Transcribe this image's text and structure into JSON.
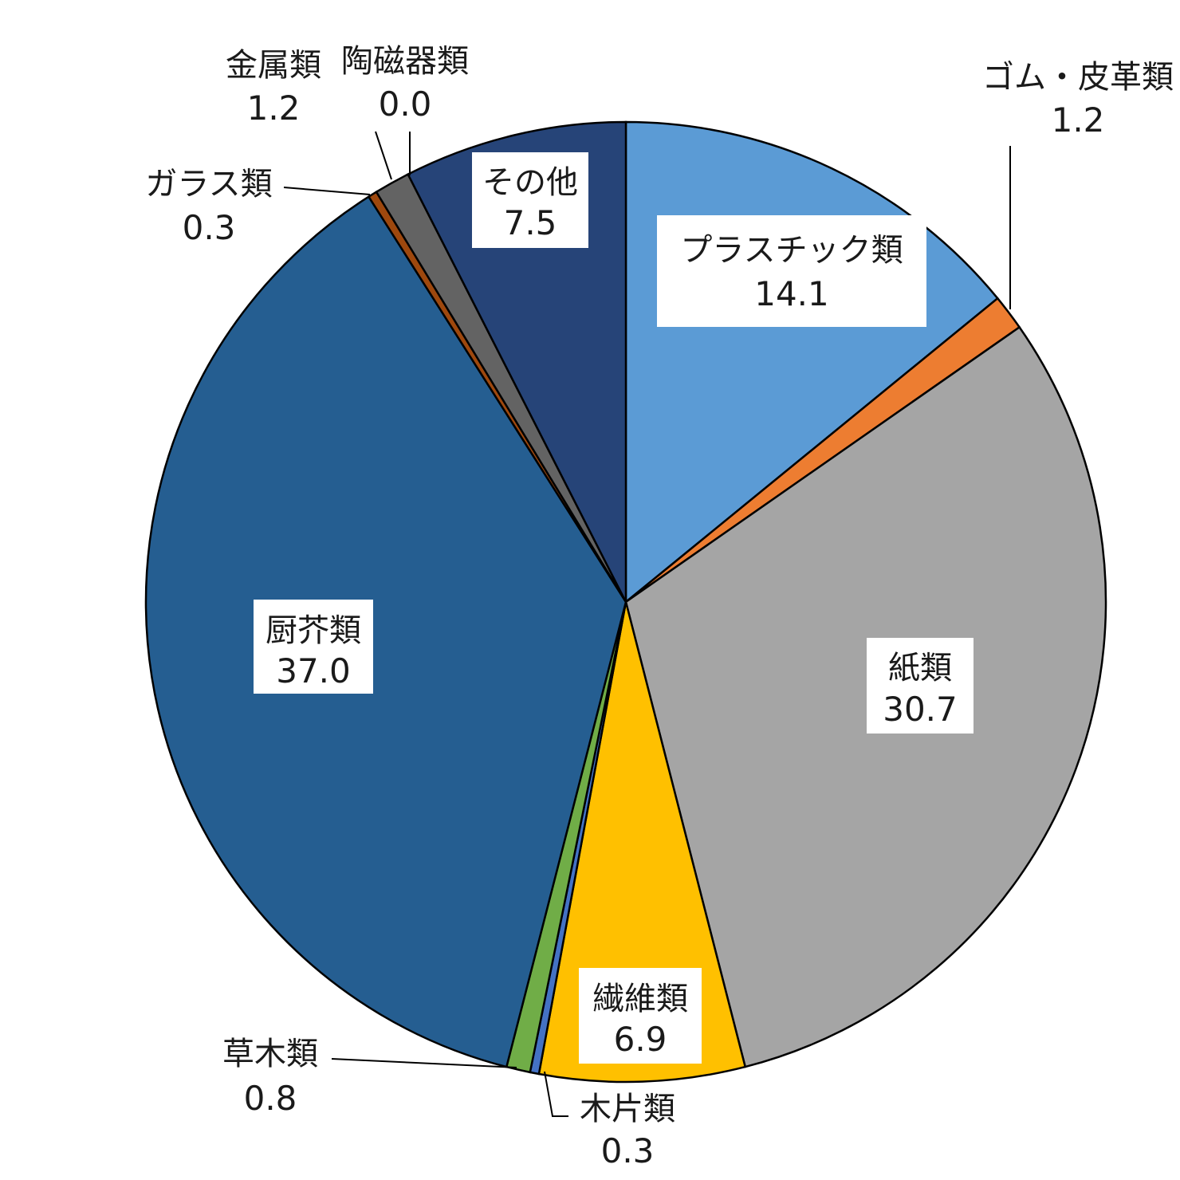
{
  "chart_data": {
    "type": "pie",
    "start_angle_deg": 0,
    "direction": "clockwise",
    "slices": [
      {
        "name": "プラスチック類",
        "value": 14.1,
        "value_label": "14.1",
        "color": "#5b9bd5"
      },
      {
        "name": "ゴム・皮革類",
        "value": 1.2,
        "value_label": "1.2",
        "color": "#ed7d31"
      },
      {
        "name": "紙類",
        "value": 30.7,
        "value_label": "30.7",
        "color": "#a5a5a5"
      },
      {
        "name": "繊維類",
        "value": 6.9,
        "value_label": "6.9",
        "color": "#ffc000"
      },
      {
        "name": "木片類",
        "value": 0.3,
        "value_label": "0.3",
        "color": "#4472c4"
      },
      {
        "name": "草木類",
        "value": 0.8,
        "value_label": "0.8",
        "color": "#70ad47"
      },
      {
        "name": "厨芥類",
        "value": 37.0,
        "value_label": "37.0",
        "color": "#255e91"
      },
      {
        "name": "ガラス類",
        "value": 0.3,
        "value_label": "0.3",
        "color": "#9e480e"
      },
      {
        "name": "金属類",
        "value": 1.2,
        "value_label": "1.2",
        "color": "#636363"
      },
      {
        "name": "陶磁器類",
        "value": 0.0,
        "value_label": "0.0",
        "color": "#997300"
      },
      {
        "name": "その他",
        "value": 7.5,
        "value_label": "7.5",
        "color": "#264478"
      }
    ]
  }
}
